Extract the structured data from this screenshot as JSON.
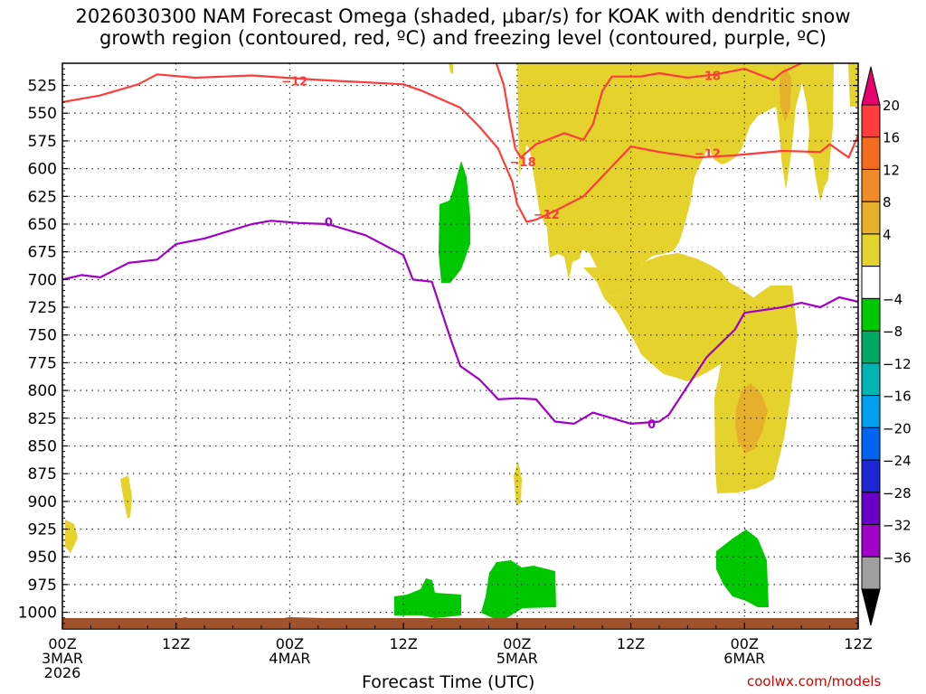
{
  "title_line1": "2026030300 NAM Forecast Omega (shaded, μbar/s) for KOAK with dendritic snow",
  "title_line2": "growth region (contoured, red, ºC) and freezing level (contoured, purple, ºC)",
  "credit": "coolwx.com/models",
  "chart_data": {
    "type": "contour",
    "title": "2026030300 NAM Forecast Omega (shaded, μbar/s) for KOAK with dendritic snow growth region (contoured, red, ºC) and freezing level (contoured, purple, ºC)",
    "xlabel": "Forecast Time (UTC)",
    "ylabel": "",
    "x_range_hours": [
      0,
      84
    ],
    "y_range_hpa": [
      505,
      1015
    ],
    "x_ticks": [
      {
        "hour": 0,
        "lines": [
          "00Z",
          "3MAR",
          "2026"
        ]
      },
      {
        "hour": 12,
        "lines": [
          "12Z"
        ]
      },
      {
        "hour": 24,
        "lines": [
          "00Z",
          "4MAR"
        ]
      },
      {
        "hour": 36,
        "lines": [
          "12Z"
        ]
      },
      {
        "hour": 48,
        "lines": [
          "00Z",
          "5MAR"
        ]
      },
      {
        "hour": 60,
        "lines": [
          "12Z"
        ]
      },
      {
        "hour": 72,
        "lines": [
          "00Z",
          "6MAR"
        ]
      },
      {
        "hour": 84,
        "lines": [
          "12Z"
        ]
      }
    ],
    "y_ticks": [
      "525",
      "550",
      "575",
      "600",
      "625",
      "650",
      "675",
      "700",
      "725",
      "750",
      "775",
      "800",
      "825",
      "850",
      "875",
      "900",
      "925",
      "950",
      "975",
      "1000"
    ],
    "grid": true,
    "colorbar": {
      "labels": [
        "20",
        "16",
        "12",
        "8",
        "4",
        "−4",
        "−8",
        "−12",
        "−16",
        "−20",
        "−24",
        "−28",
        "−32",
        "−36"
      ],
      "colors": [
        "#e8006e",
        "#ff3c3c",
        "#f46a1e",
        "#f08c28",
        "#e6b02d",
        "#e6d22d",
        "#ffffff",
        "#00c800",
        "#00a864",
        "#00b4b4",
        "#00a0f0",
        "#0064f0",
        "#1e28d2",
        "#6a00c8",
        "#a000c8",
        "#a0a0a0",
        "#000000"
      ]
    },
    "shaded_regions": [
      {
        "value_class": "4 to 8",
        "color": "#e6d22d",
        "desc": "dense ascent region 00Z 5MAR to 12Z 6MAR, 505-860 hPa"
      },
      {
        "value_class": "8 to 12",
        "color": "#e6b02d",
        "desc": "embedded max near 00Z 6MAR, 770-820 hPa and 525-560 hPa"
      },
      {
        "value_class": "-4 to -8",
        "color": "#00c800",
        "desc": "subsidence pockets near 18Z 4MAR 590-670 hPa and near surface 950-995 hPa"
      }
    ],
    "series": [
      {
        "name": "-12 ºC isotherm (upper)",
        "color": "#ff3c3c",
        "label": "−12",
        "points": [
          [
            0,
            540
          ],
          [
            4,
            534
          ],
          [
            8,
            524
          ],
          [
            10,
            515
          ],
          [
            14,
            518
          ],
          [
            20,
            516
          ],
          [
            27,
            520
          ],
          [
            36,
            524
          ],
          [
            38,
            530
          ],
          [
            42,
            545
          ],
          [
            44,
            562
          ],
          [
            46,
            582
          ],
          [
            47.5,
            612
          ],
          [
            48,
            632
          ],
          [
            49,
            648
          ],
          [
            50,
            646
          ],
          [
            52,
            638
          ],
          [
            55,
            625
          ],
          [
            58,
            598
          ],
          [
            60,
            580
          ],
          [
            63,
            585
          ],
          [
            67,
            590
          ],
          [
            71,
            588
          ],
          [
            76,
            584
          ],
          [
            80,
            585
          ],
          [
            81,
            578
          ],
          [
            83,
            590
          ],
          [
            84,
            570
          ],
          [
            85,
            552
          ]
        ]
      },
      {
        "name": "-18 ºC isotherm",
        "color": "#ff3c3c",
        "label": "−18",
        "points": [
          [
            45.8,
            505
          ],
          [
            46.6,
            525
          ],
          [
            47.2,
            555
          ],
          [
            47.8,
            582
          ],
          [
            48.4,
            590
          ],
          [
            50,
            578
          ],
          [
            53,
            568
          ],
          [
            55,
            574
          ],
          [
            56,
            560
          ],
          [
            57,
            530
          ],
          [
            58,
            517
          ],
          [
            61,
            517
          ],
          [
            63,
            514
          ],
          [
            66,
            518
          ],
          [
            69,
            515
          ],
          [
            72,
            510
          ],
          [
            75,
            520
          ],
          [
            76,
            513
          ],
          [
            78,
            505
          ]
        ]
      },
      {
        "name": "0 ºC freezing level",
        "color": "#a000c8",
        "label": "0",
        "points": [
          [
            0,
            700
          ],
          [
            2,
            696
          ],
          [
            4,
            698
          ],
          [
            7,
            685
          ],
          [
            10,
            682
          ],
          [
            12,
            668
          ],
          [
            15,
            663
          ],
          [
            20,
            650
          ],
          [
            22,
            647
          ],
          [
            25,
            649
          ],
          [
            28,
            650
          ],
          [
            32,
            660
          ],
          [
            36,
            678
          ],
          [
            37,
            700
          ],
          [
            39,
            702
          ],
          [
            40,
            728
          ],
          [
            41,
            754
          ],
          [
            42,
            778
          ],
          [
            44,
            790
          ],
          [
            46,
            808
          ],
          [
            48,
            807
          ],
          [
            50,
            808
          ],
          [
            52,
            828
          ],
          [
            54,
            830
          ],
          [
            56,
            820
          ],
          [
            60,
            830
          ],
          [
            63,
            828
          ],
          [
            64,
            822
          ],
          [
            66,
            796
          ],
          [
            68,
            770
          ],
          [
            71,
            745
          ],
          [
            72,
            730
          ],
          [
            76,
            725
          ],
          [
            78,
            721
          ],
          [
            80,
            725
          ],
          [
            82,
            716
          ],
          [
            84,
            720
          ],
          [
            85,
            725
          ]
        ]
      }
    ],
    "contour_labels": [
      {
        "text": "−12",
        "hour": 24.5,
        "hpa": 521,
        "color": "#ff3c3c"
      },
      {
        "text": "−18",
        "hour": 48.6,
        "hpa": 594,
        "color": "#ff3c3c"
      },
      {
        "text": "−12",
        "hour": 51.1,
        "hpa": 641,
        "color": "#ff3c3c"
      },
      {
        "text": "−18",
        "hour": 68.1,
        "hpa": 516,
        "color": "#ff3c3c"
      },
      {
        "text": "−12",
        "hour": 68.1,
        "hpa": 586,
        "color": "#ff3c3c"
      },
      {
        "text": "0",
        "hour": 28.1,
        "hpa": 648,
        "color": "#a000c8"
      },
      {
        "text": "0",
        "hour": 62.2,
        "hpa": 830,
        "color": "#a000c8"
      }
    ]
  }
}
